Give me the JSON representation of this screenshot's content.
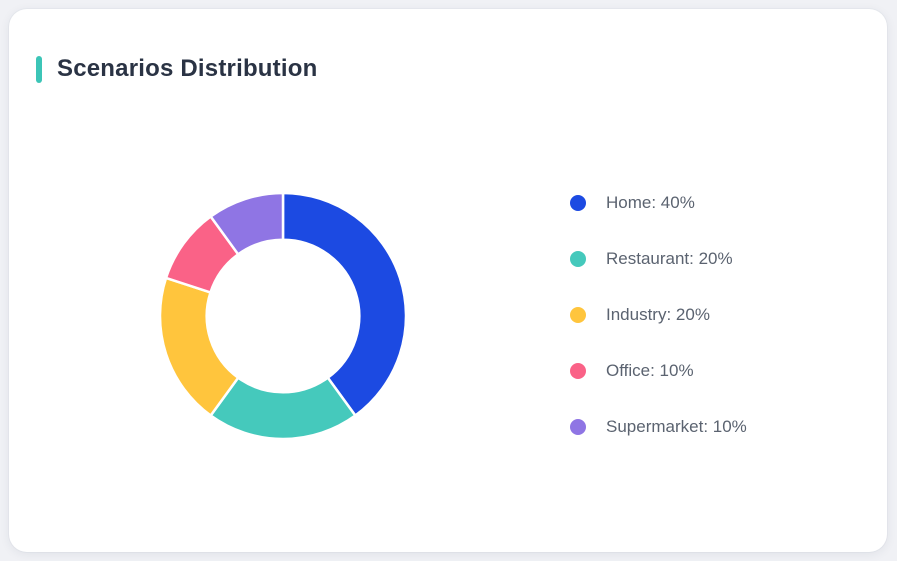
{
  "header": {
    "title": "Scenarios Distribution",
    "accent_color": "#3cc5b7"
  },
  "chart_data": {
    "type": "pie",
    "title": "Scenarios Distribution",
    "donut": true,
    "inner_radius_ratio": 0.62,
    "start_angle_deg": 0,
    "direction": "clockwise",
    "categories": [
      "Home",
      "Restaurant",
      "Industry",
      "Office",
      "Supermarket"
    ],
    "values": [
      40,
      20,
      20,
      10,
      10
    ],
    "unit": "%",
    "colors": [
      "#1c4ae2",
      "#45c9bc",
      "#ffc53d",
      "#fa6287",
      "#8f75e4"
    ],
    "slice_border_color": "#ffffff",
    "slice_border_width": 2.5,
    "legend_position": "right",
    "legend_labels": [
      "Home: 40%",
      "Restaurant: 20%",
      "Industry: 20%",
      "Office: 10%",
      "Supermarket: 10%"
    ]
  }
}
